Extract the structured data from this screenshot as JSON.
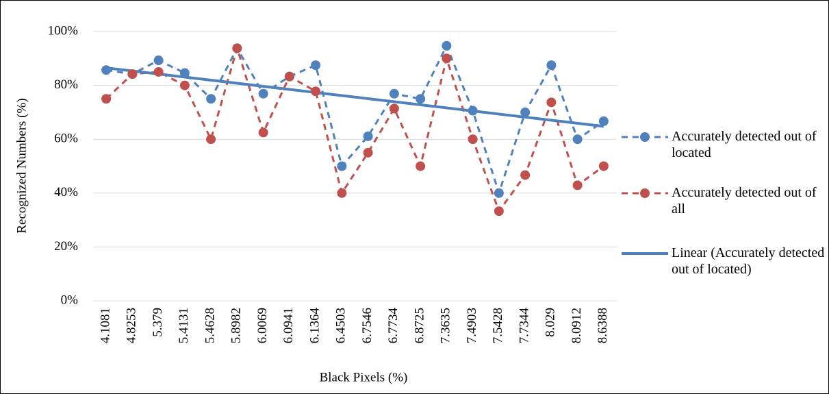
{
  "chart_data": {
    "type": "line",
    "x_label": "Black Pixels (%)",
    "y_label": "Recognized Numbers (%)",
    "categories": [
      "4.1081",
      "4.8253",
      "5.379",
      "5.4131",
      "5.4628",
      "5.8982",
      "6.0069",
      "6.0941",
      "6.1364",
      "6.4503",
      "6.7546",
      "6.7734",
      "6.8725",
      "7.3635",
      "7.4903",
      "7.5428",
      "7.7344",
      "8.029",
      "8.0912",
      "8.6388"
    ],
    "series": [
      {
        "name": "Accurately detected out of located",
        "color": "#4f81bd",
        "values": [
          85.7,
          84.2,
          89.3,
          84.6,
          75,
          93.8,
          76.9,
          83.3,
          87.5,
          50,
          61.1,
          76.9,
          75,
          94.7,
          70.6,
          40,
          70,
          87.5,
          60,
          66.7
        ]
      },
      {
        "name": "Accurately detected out of all",
        "color": "#c0504d",
        "values": [
          75,
          84.2,
          85,
          80,
          60,
          93.8,
          62.5,
          83.3,
          77.8,
          40,
          55,
          71.4,
          50,
          90,
          60,
          33.3,
          46.7,
          73.7,
          42.9,
          50
        ]
      }
    ],
    "trendline": {
      "name": "Linear (Accurately detected out of located)",
      "color": "#4f81bd"
    },
    "ylim": [
      0,
      100
    ],
    "yticks": [
      {
        "value": 0,
        "label": "0%"
      },
      {
        "value": 20,
        "label": "20%"
      },
      {
        "value": 40,
        "label": "40%"
      },
      {
        "value": 60,
        "label": "60%"
      },
      {
        "value": 80,
        "label": "80%"
      },
      {
        "value": 100,
        "label": "100%"
      }
    ],
    "grid": true
  }
}
